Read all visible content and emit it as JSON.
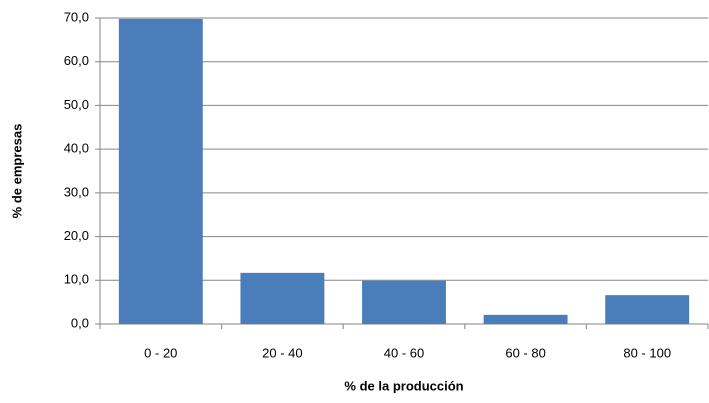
{
  "chart_data": {
    "type": "bar",
    "x_label": "% de la producción",
    "y_label": "% de empresas",
    "categories": [
      "0 - 20",
      "20 - 40",
      "40 -  60",
      "60  - 80",
      "80 - 100"
    ],
    "values": [
      69.8,
      11.7,
      9.9,
      2.1,
      6.6
    ],
    "color": "#4a7ebb",
    "ylim": [
      0,
      70
    ],
    "yticks": [
      {
        "value": 0,
        "label": "0,0"
      },
      {
        "value": 10,
        "label": "10,0"
      },
      {
        "value": 20,
        "label": "20,0"
      },
      {
        "value": 30,
        "label": "30,0"
      },
      {
        "value": 40,
        "label": "40,0"
      },
      {
        "value": 50,
        "label": "50,0"
      },
      {
        "value": 60,
        "label": "60,0"
      },
      {
        "value": 70,
        "label": "70,0"
      }
    ],
    "grid": true
  }
}
